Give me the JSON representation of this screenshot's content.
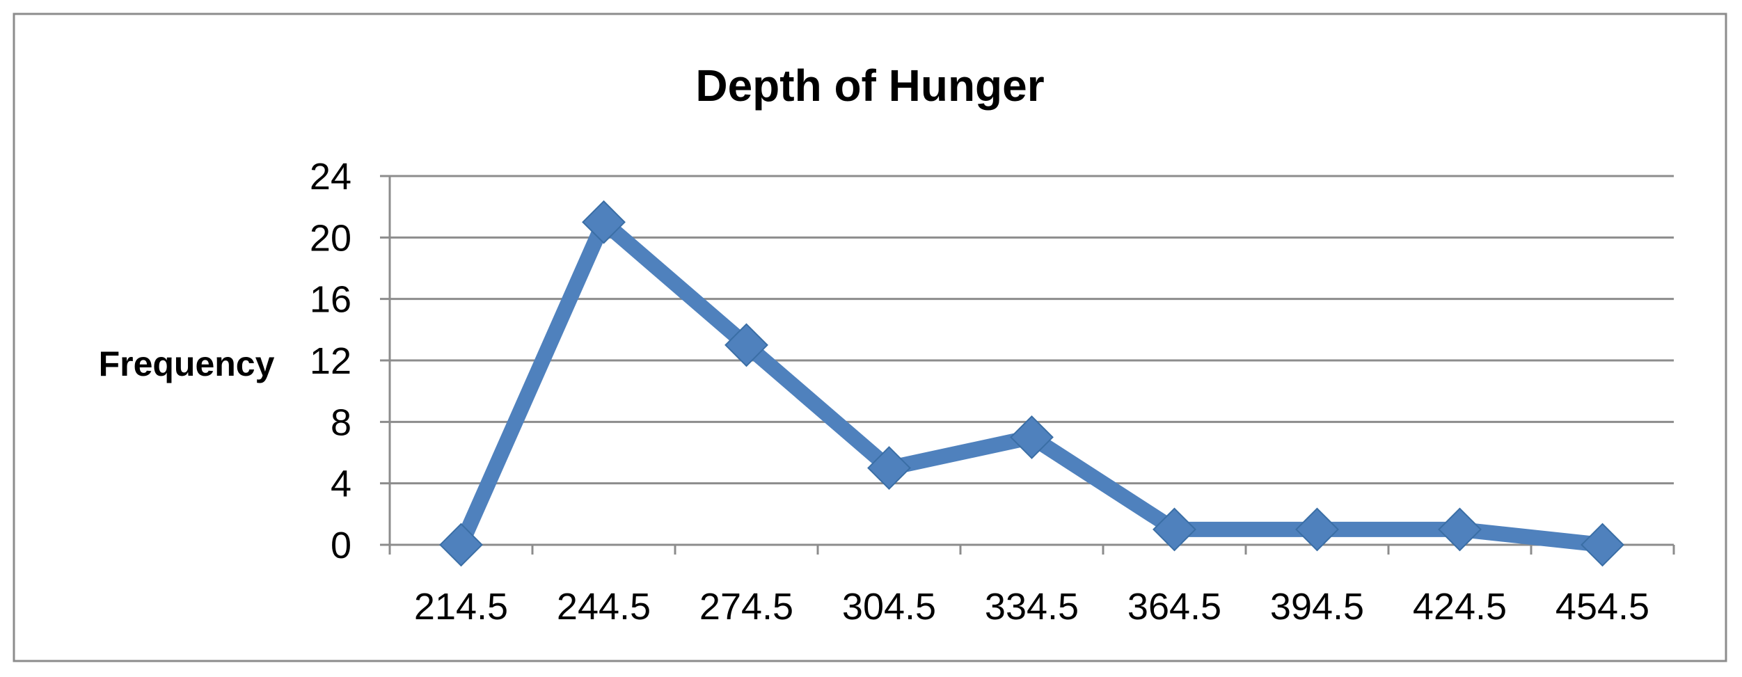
{
  "chart_data": {
    "type": "line",
    "title": "Depth of Hunger",
    "xlabel": "",
    "ylabel": "Frequency",
    "categories": [
      "214.5",
      "244.5",
      "274.5",
      "304.5",
      "334.5",
      "364.5",
      "394.5",
      "424.5",
      "454.5"
    ],
    "series": [
      {
        "values": [
          0,
          21,
          13,
          5,
          7,
          1,
          1,
          1,
          0
        ],
        "color": "#4F81BD",
        "marker": "diamond"
      }
    ],
    "y_ticks": [
      "0",
      "4",
      "8",
      "12",
      "16",
      "20",
      "24"
    ],
    "ylim": [
      0,
      24
    ],
    "grid": true,
    "legend": "none"
  }
}
